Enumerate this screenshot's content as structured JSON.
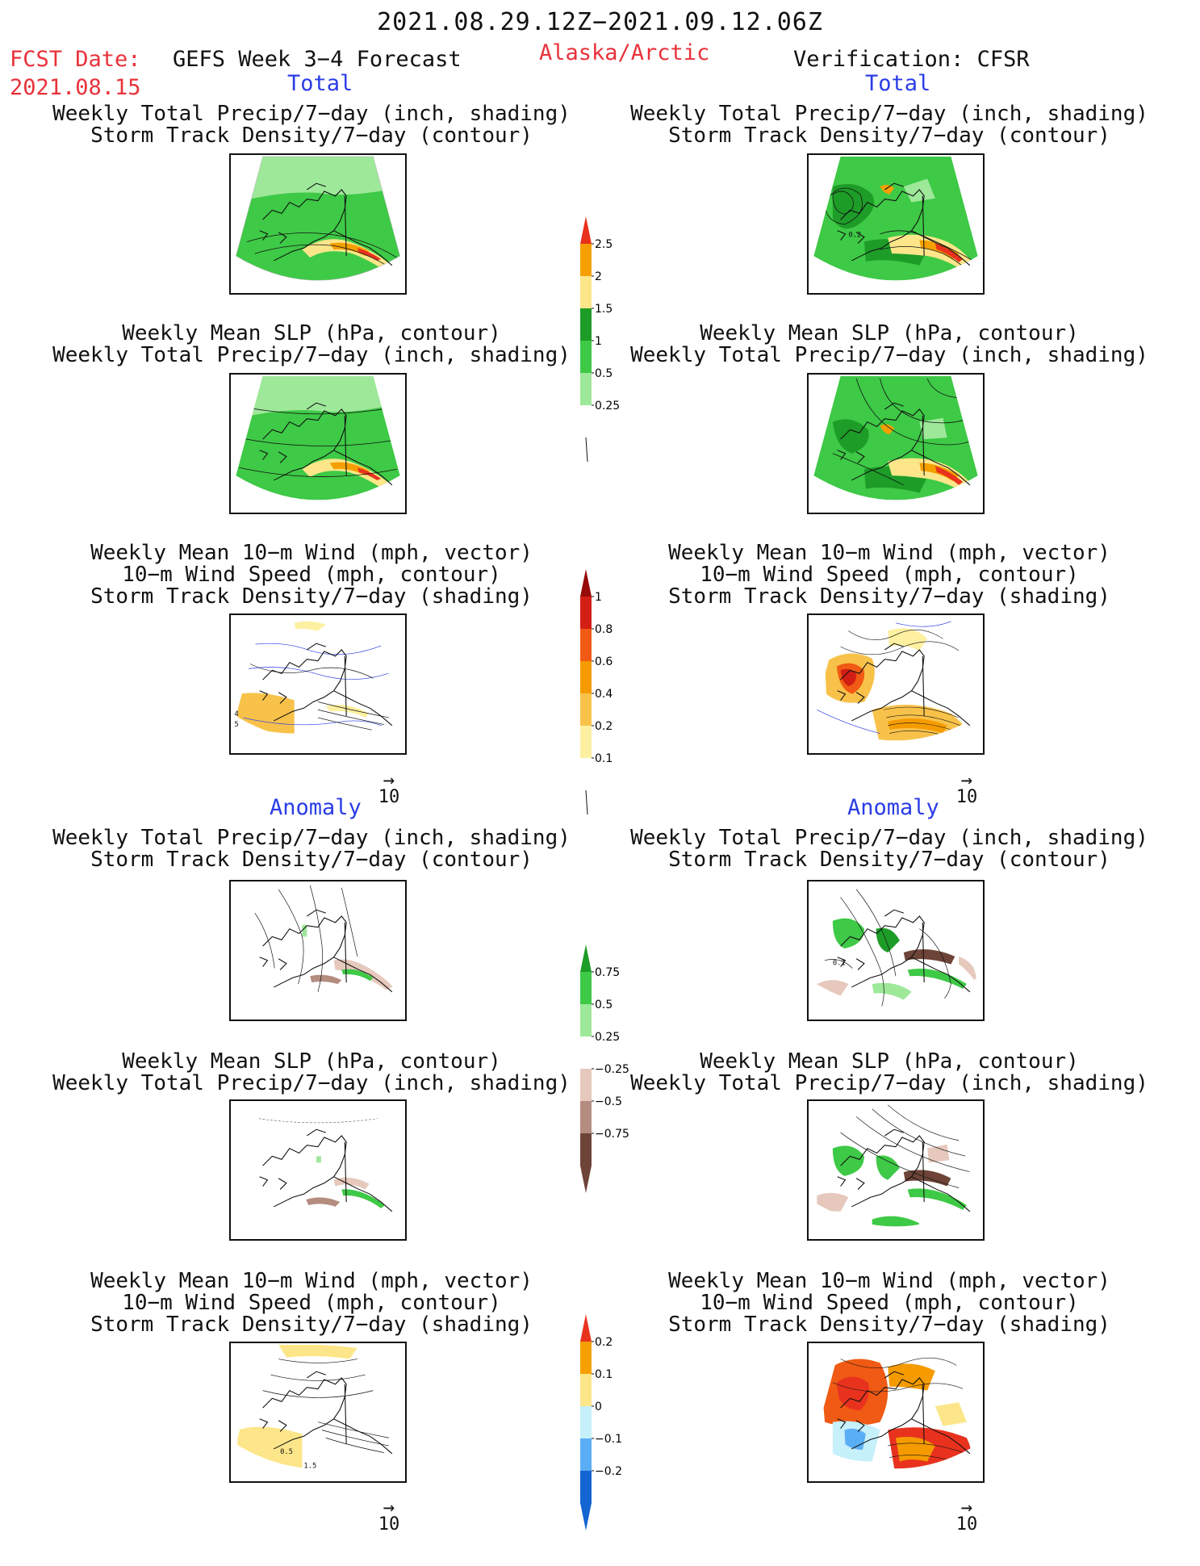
{
  "header": {
    "date_range": "2021.08.29.12Z−2021.09.12.06Z",
    "fcst_label": "FCST Date:",
    "fcst_date": "2021.08.15",
    "forecast_title": "GEFS Week 3−4 Forecast",
    "region": "Alaska/Arctic",
    "verification": "Verification: CFSR"
  },
  "sections": {
    "total": "Total",
    "anomaly": "Anomaly"
  },
  "panel_titles": {
    "precip_storm": [
      "Weekly Total Precip/7−day (inch, shading)",
      "Storm Track Density/7−day (contour)"
    ],
    "slp_precip": [
      "Weekly Mean SLP (hPa, contour)",
      "Weekly Total Precip/7−day (inch, shading)"
    ],
    "wind_storm": [
      "Weekly Mean 10−m Wind (mph, vector)",
      "10−m Wind Speed (mph, contour)",
      "Storm Track Density/7−day (shading)"
    ]
  },
  "vector_ref": {
    "arrow": "→",
    "value": "10"
  },
  "map_labels": {
    "verif_total_storm": "0.2",
    "fcst_total_wind_a": "4",
    "fcst_total_wind_b": "5",
    "verif_anom_storm": "0.1",
    "fcst_anom_wind_a": "0.5",
    "fcst_anom_wind_b": "1.5"
  },
  "colorbars": {
    "total_precip": {
      "ticks": [
        "2.5",
        "2",
        "1.5",
        "1",
        "0.5",
        "0.25"
      ],
      "colors": [
        "#e8321e",
        "#f5a000",
        "#fde68a",
        "#1e9c28",
        "#3ec946",
        "#9ee89a",
        "#ffffff"
      ]
    },
    "total_storm": {
      "ticks": [
        "1",
        "0.8",
        "0.6",
        "0.4",
        "0.2",
        "0.1"
      ],
      "colors": [
        "#960a0a",
        "#d21e14",
        "#f05a14",
        "#f59b00",
        "#f8c24a",
        "#fdf0a0",
        "#ffffff"
      ]
    },
    "anom_precip": {
      "ticks": [
        "0.75",
        "0.5",
        "0.25",
        "−0.25",
        "−0.5",
        "−0.75"
      ],
      "colors": [
        "#1e9c28",
        "#3ec946",
        "#9ee89a",
        "#ffffff",
        "#e6c8bc",
        "#b48c80",
        "#6e4438"
      ]
    },
    "anom_storm": {
      "ticks": [
        "0.2",
        "0.1",
        "0",
        "−0.1",
        "−0.2"
      ],
      "colors": [
        "#e8321e",
        "#f5a000",
        "#fde68a",
        "#c6f0fa",
        "#5aaef5",
        "#1464d2"
      ]
    }
  }
}
